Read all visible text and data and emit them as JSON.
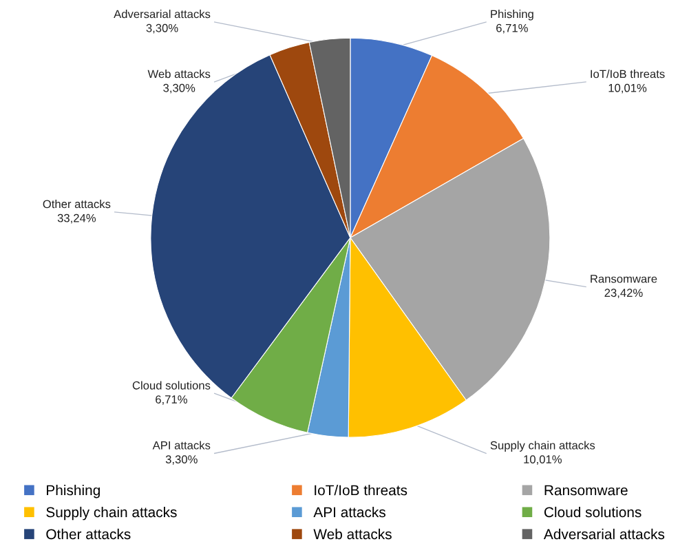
{
  "chart_data": {
    "type": "pie",
    "categories": [
      "Phishing",
      "IoT/IoB threats",
      "Ransomware",
      "Supply chain attacks",
      "API attacks",
      "Cloud solutions",
      "Other attacks",
      "Web attacks",
      "Adversarial attacks"
    ],
    "values": [
      6.71,
      10.01,
      23.42,
      10.01,
      3.3,
      6.71,
      33.24,
      3.3,
      3.3
    ],
    "value_labels": [
      "6,71%",
      "10,01%",
      "23,42%",
      "10,01%",
      "3,30%",
      "6,71%",
      "33,24%",
      "3,30%",
      "3,30%"
    ],
    "colors": [
      "#4472c4",
      "#ed7d31",
      "#a5a5a5",
      "#ffc000",
      "#5b9bd5",
      "#70ad47",
      "#264478",
      "#9e480e",
      "#636363"
    ],
    "legend": "bottom"
  }
}
